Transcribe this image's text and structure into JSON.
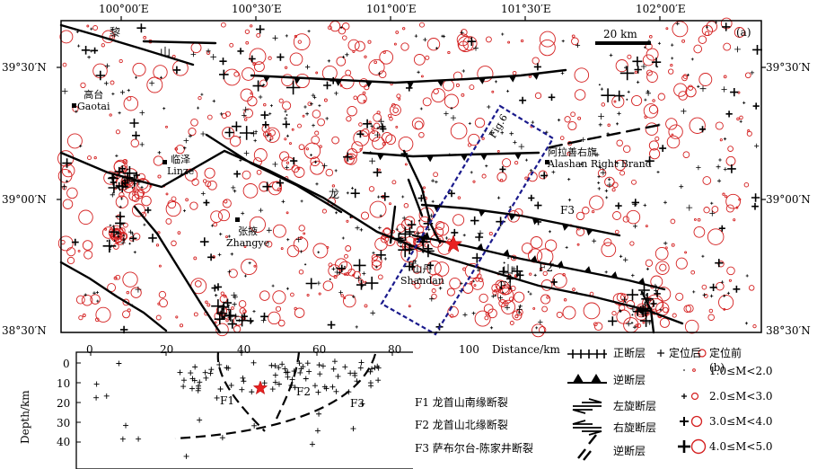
{
  "map": {
    "panel_a": "(a)",
    "panel_b": "(b)",
    "lon_ticks": [
      "100°00′E",
      "100°30′E",
      "101°00′E",
      "101°30′E",
      "102°00′E"
    ],
    "lat_ticks": [
      "39°30′N",
      "39°00′N",
      "38°30′N"
    ],
    "scale": "20 km",
    "inset_label": "Fig.6",
    "places": {
      "gaotai_cn": "高台",
      "gaotai_en": "Gaotai",
      "linze_cn": "临泽",
      "linze_en": "Linze",
      "zhangye_cn": "张掖",
      "zhangye_en": "Zhangye",
      "shandan_cn": "山丹",
      "shandan_en": "Shandan",
      "alashan_cn": "阿拉善右旗",
      "alashan_en": "Alashan Right Brand"
    },
    "fault_labels": {
      "f1": "F1",
      "f2": "F2",
      "f3": "F3"
    },
    "chars": {
      "li": "黎",
      "shan1": "山",
      "long": "龙",
      "shan2": "山"
    }
  },
  "profile": {
    "xlabel": "Distance/km",
    "ylabel": "Depth/km",
    "x_ticks": [
      "0",
      "20",
      "40",
      "60",
      "80",
      "100"
    ],
    "y_ticks": [
      "0",
      "10",
      "20",
      "30",
      "40"
    ],
    "fault_labels": {
      "f1": "F1",
      "f2": "F2",
      "f3": "F3"
    }
  },
  "legend": {
    "normal_fault": "正断层",
    "thrust_fault": "逆断层",
    "left_lateral": "左旋断层",
    "right_lateral": "右旋断层",
    "reverse_fault": "逆断层",
    "after_relocation": "定位后",
    "before_relocation": "定位前",
    "mag1": "1.0≤M<2.0",
    "mag2": "2.0≤M<3.0",
    "mag3": "3.0≤M<4.0",
    "mag4": "4.0≤M<5.0",
    "f1": "F1 龙首山南缘断裂",
    "f2": "F2 龙首山北缘断裂",
    "f3": "F3 萨布尔台-陈家井断裂"
  },
  "colors": {
    "before": "#d42020",
    "after": "#000000",
    "star": "#e82020",
    "box": "#1a1a8c"
  }
}
